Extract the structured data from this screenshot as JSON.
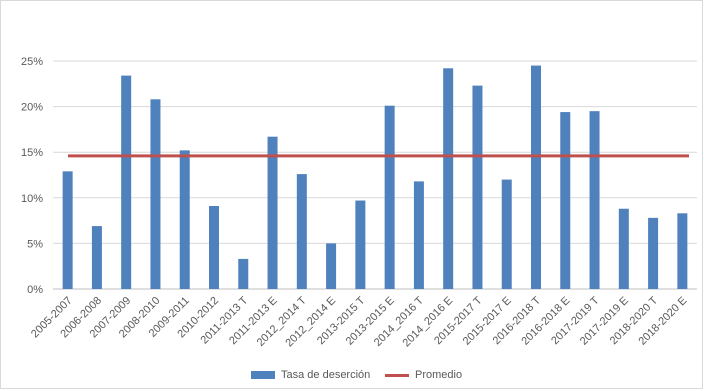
{
  "chart_data": {
    "type": "bar",
    "categories": [
      "2005-2007",
      "2006-2008",
      "2007-2009",
      "2008-2010",
      "2009-2011",
      "2010-2012",
      "2011-2013 T",
      "2011-2013 E",
      "2012_2014 T",
      "2012_2014 E",
      "2013-2015 T",
      "2013-2015 E",
      "2014_2016 T",
      "2014_2016 E",
      "2015-2017 T",
      "2015-2017 E",
      "2016-2018 T",
      "2016-2018 E",
      "2017-2019 T",
      "2017-2019 E",
      "2018-2020 T",
      "2018-2020 E"
    ],
    "series": [
      {
        "name": "Tasa de deserción",
        "type": "bar",
        "color": "#4f81bd",
        "values": [
          0.129,
          0.069,
          0.234,
          0.208,
          0.152,
          0.091,
          0.033,
          0.167,
          0.126,
          0.05,
          0.097,
          0.201,
          0.118,
          0.242,
          0.223,
          0.12,
          0.245,
          0.194,
          0.195,
          0.088,
          0.078,
          0.083
        ]
      },
      {
        "name": "Promedio",
        "type": "line",
        "color": "#c0504d",
        "value": 0.146
      }
    ],
    "yticks": [
      "0%",
      "5%",
      "10%",
      "15%",
      "20%",
      "25%"
    ],
    "ylim": [
      0,
      0.25
    ],
    "grid": "horizontal",
    "legend": "bottom",
    "title": "",
    "xlabel": "",
    "ylabel": ""
  }
}
